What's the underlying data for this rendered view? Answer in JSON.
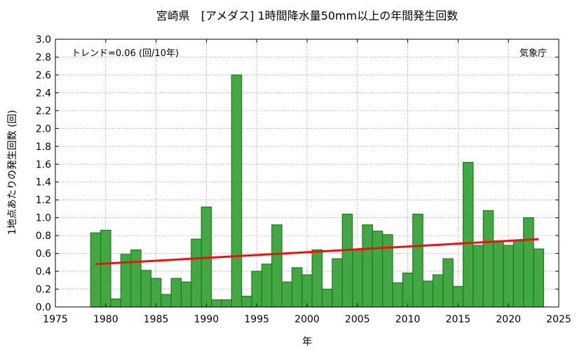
{
  "chart_data": {
    "type": "bar",
    "title": "宮崎県　[アメダス] 1時間降水量50mm以上の年間発生回数",
    "xlabel": "年",
    "ylabel": "1地点あたりの発生回数 (回)",
    "trend_label": "トレンド=0.06 (回/10年)",
    "source_label": "気象庁",
    "xlim": [
      1975,
      2025
    ],
    "ylim": [
      0,
      3.0
    ],
    "x_ticks": [
      1975,
      1980,
      1985,
      1990,
      1995,
      2000,
      2005,
      2010,
      2015,
      2020,
      2025
    ],
    "y_ticks": [
      0.0,
      0.2,
      0.4,
      0.6,
      0.8,
      1.0,
      1.2,
      1.4,
      1.6,
      1.8,
      2.0,
      2.2,
      2.4,
      2.6,
      2.8,
      3.0
    ],
    "grid": true,
    "bar_color": "#43a843",
    "bar_edge_color": "#1e7a1e",
    "trend_color": "#ee1111",
    "years": [
      1979,
      1980,
      1981,
      1982,
      1983,
      1984,
      1985,
      1986,
      1987,
      1988,
      1989,
      1990,
      1991,
      1992,
      1993,
      1994,
      1995,
      1996,
      1997,
      1998,
      1999,
      2000,
      2001,
      2002,
      2003,
      2004,
      2005,
      2006,
      2007,
      2008,
      2009,
      2010,
      2011,
      2012,
      2013,
      2014,
      2015,
      2016,
      2017,
      2018,
      2019,
      2020,
      2021,
      2022,
      2023
    ],
    "values": [
      0.83,
      0.86,
      0.09,
      0.59,
      0.64,
      0.41,
      0.32,
      0.14,
      0.32,
      0.28,
      0.76,
      1.12,
      0.08,
      0.08,
      2.6,
      0.12,
      0.4,
      0.48,
      0.92,
      0.28,
      0.44,
      0.36,
      0.64,
      0.2,
      0.54,
      1.04,
      0.64,
      0.92,
      0.85,
      0.81,
      0.27,
      0.38,
      1.04,
      0.29,
      0.36,
      0.54,
      0.23,
      1.62,
      0.69,
      1.08,
      0.74,
      0.69,
      0.74,
      1.0,
      0.65
    ],
    "trend": {
      "x": [
        1979,
        2023
      ],
      "y": [
        0.48,
        0.76
      ]
    }
  }
}
